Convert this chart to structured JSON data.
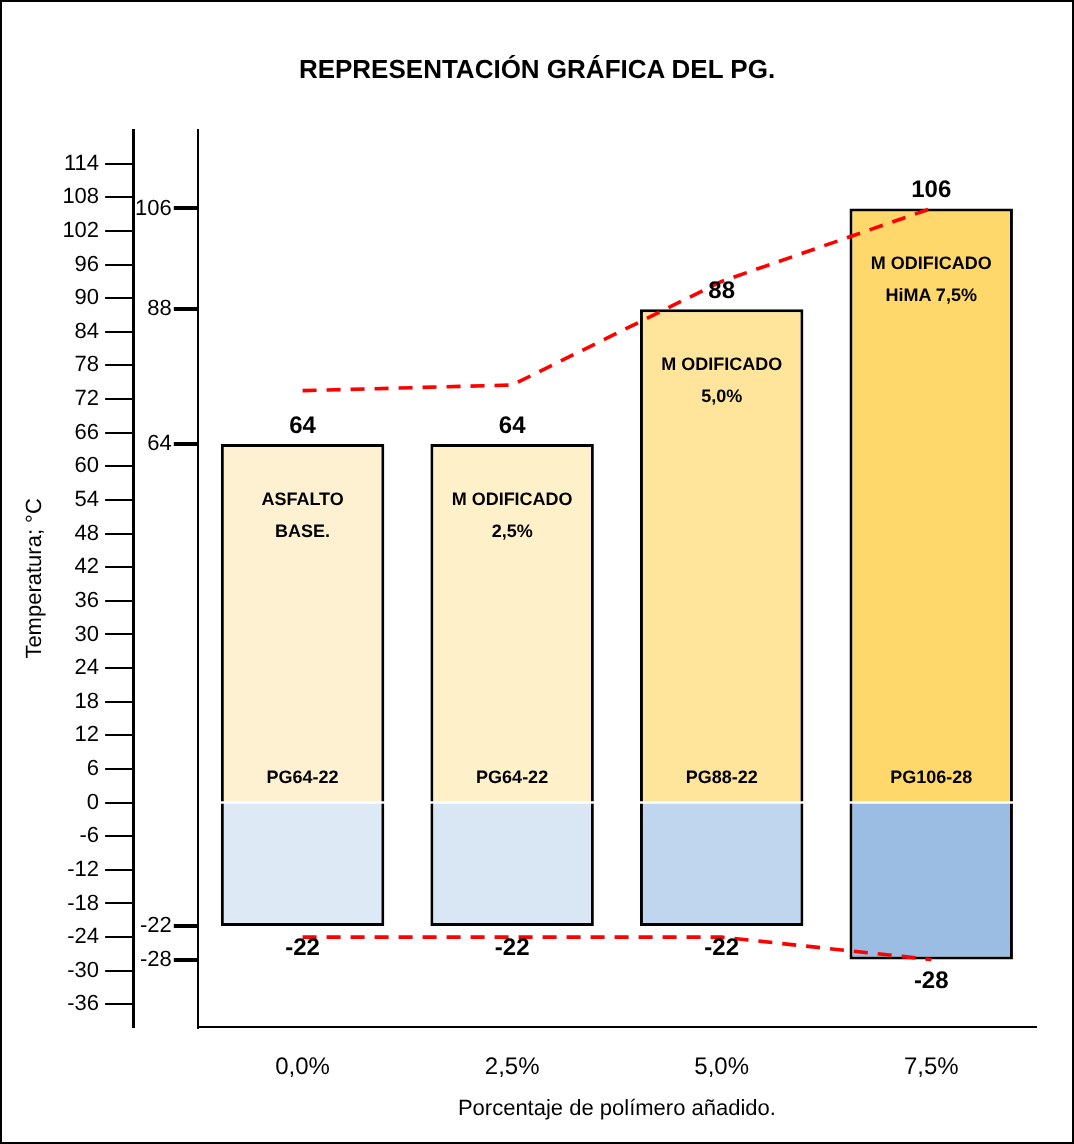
{
  "chart_data": {
    "type": "bar",
    "title": "REPRESENTACIÓN GRÁFICA DEL PG.",
    "xlabel": "Porcentaje de polímero añadido.",
    "ylabel": "Temperatura; °C",
    "categories": [
      "0,0%",
      "2,5%",
      "5,0%",
      "7,5%"
    ],
    "stacked": true,
    "grid": false,
    "legend": false,
    "series": [
      {
        "colors": [
          "#fef1d2",
          "#fef0c9",
          "#fee59b",
          "#fed86a"
        ],
        "values": [
          64,
          64,
          88,
          106
        ],
        "value_labels": [
          "64",
          "64",
          "88",
          "106"
        ]
      },
      {
        "colors": [
          "#dde9f5",
          "#d9e6f4",
          "#bfd6ee",
          "#9bbde4"
        ],
        "values": [
          -22,
          -22,
          -22,
          -28
        ],
        "value_labels": [
          "-22",
          "-22",
          "-22",
          "-28"
        ]
      },
      {
        "type": "line",
        "color": "#ff0000",
        "line_style": "dashed",
        "marker": "none",
        "values": [
          73.5,
          74.5,
          93,
          106
        ]
      },
      {
        "type": "line",
        "color": "#ff0000",
        "line_style": "dashed",
        "marker": "none",
        "values": [
          -24,
          -24,
          -24,
          -28
        ]
      }
    ],
    "ylim": [
      -40,
      120
    ],
    "yticks": [
      -36,
      -30,
      -24,
      -18,
      -12,
      -6,
      0,
      6,
      12,
      18,
      24,
      30,
      36,
      42,
      48,
      54,
      60,
      66,
      72,
      78,
      84,
      90,
      96,
      102,
      108,
      114
    ],
    "y2lim": [
      -40,
      120
    ],
    "y2ticks": [
      -28,
      -22,
      64,
      88,
      106
    ],
    "annotations": [
      "ASFALTO\nBASE.",
      "M ODIFICADO\n2,5%",
      "M ODIFICADO\n5,0%",
      "M ODIFICADO\nHiMA 7,5%",
      "PG64-22",
      "PG64-22",
      "PG88-22",
      "PG106-28"
    ]
  }
}
